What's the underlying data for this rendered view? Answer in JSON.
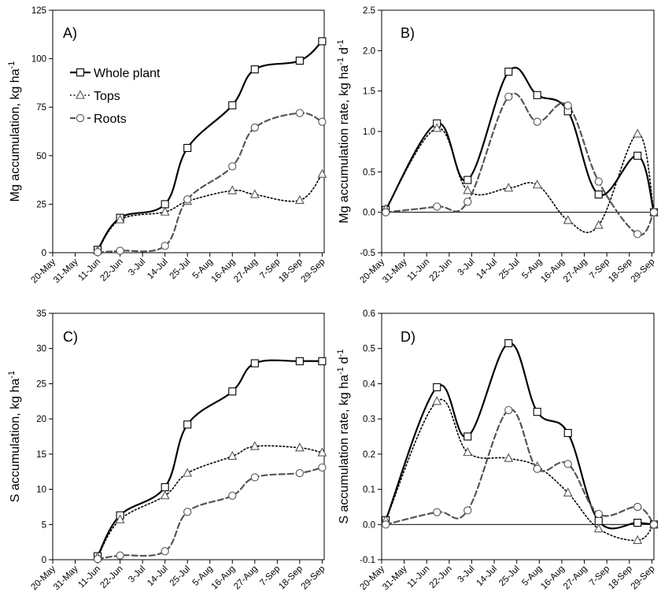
{
  "chart_data": [
    {
      "type": "line",
      "panel": "A)",
      "ylabel": "Mg accumulation, kg ha",
      "ylabel_sup": "-1",
      "ylabel_tail": "",
      "ylim": [
        0,
        125
      ],
      "yticks": [
        0,
        25,
        50,
        75,
        100,
        125
      ],
      "ytick_labels": [
        "0",
        "25",
        "50",
        "75",
        "100",
        "125"
      ],
      "xticks": [
        "20-May",
        "31-May",
        "11-Jun",
        "22-Jun",
        "3-Jul",
        "14-Jul",
        "25-Jul",
        "5-Aug",
        "16-Aug",
        "27-Aug",
        "7-Sep",
        "18-Sep",
        "29-Sep"
      ],
      "zero_line": false,
      "legend": "top-left",
      "series": [
        {
          "name": "Whole plant",
          "marker": "square",
          "style": "solid",
          "x": [
            "11-Jun",
            "22-Jun",
            "14-Jul",
            "25-Jul",
            "16-Aug",
            "27-Aug",
            "18-Sep",
            "29-Sep"
          ],
          "values": [
            1.5,
            18,
            25,
            54,
            76,
            94.5,
            99,
            109
          ]
        },
        {
          "name": "Tops",
          "marker": "triangle",
          "style": "dotted",
          "x": [
            "11-Jun",
            "22-Jun",
            "14-Jul",
            "25-Jul",
            "16-Aug",
            "27-Aug",
            "18-Sep",
            "29-Sep"
          ],
          "values": [
            1,
            17,
            21,
            26.5,
            32,
            30,
            27,
            40.5
          ]
        },
        {
          "name": "Roots",
          "marker": "circle",
          "style": "dashed",
          "x": [
            "11-Jun",
            "22-Jun",
            "14-Jul",
            "25-Jul",
            "16-Aug",
            "27-Aug",
            "18-Sep",
            "29-Sep"
          ],
          "values": [
            0.3,
            1,
            3.5,
            27.5,
            44.5,
            64.5,
            72,
            67.5
          ]
        }
      ]
    },
    {
      "type": "line",
      "panel": "B)",
      "ylabel": "Mg accumulation rate, kg ha",
      "ylabel_sup": "-1",
      "ylabel_tail": "d",
      "ylabel_tail_sup": "-1",
      "ylim": [
        -0.5,
        2.5
      ],
      "yticks": [
        -0.5,
        0,
        0.5,
        1,
        1.5,
        2,
        2.5
      ],
      "ytick_labels": [
        "-0.5",
        "0.0",
        "0.5",
        "1.0",
        "1.5",
        "2.0",
        "2.5"
      ],
      "xticks": [
        "20-May",
        "31-May",
        "11-Jun",
        "22-Jun",
        "3-Jul",
        "14-Jul",
        "25-Jul",
        "5-Aug",
        "16-Aug",
        "27-Aug",
        "7-Sep",
        "18-Sep",
        "29-Sep"
      ],
      "zero_line": true,
      "series": [
        {
          "name": "Whole plant",
          "marker": "square",
          "style": "solid",
          "x": [
            "22-May",
            "16-Jun",
            "1-Jul",
            "21-Jul",
            "4-Aug",
            "19-Aug",
            "3-Sep",
            "22-Sep",
            "30-Sep"
          ],
          "values": [
            0.03,
            1.1,
            0.4,
            1.74,
            1.45,
            1.25,
            0.22,
            0.7,
            0.0
          ]
        },
        {
          "name": "Tops",
          "marker": "triangle",
          "style": "dotted",
          "x": [
            "22-May",
            "16-Jun",
            "1-Jul",
            "21-Jul",
            "4-Aug",
            "19-Aug",
            "3-Sep",
            "22-Sep",
            "30-Sep"
          ],
          "values": [
            0.04,
            1.04,
            0.27,
            0.3,
            0.34,
            -0.1,
            -0.16,
            0.97,
            0.0
          ]
        },
        {
          "name": "Roots",
          "marker": "circle",
          "style": "dashed",
          "x": [
            "22-May",
            "16-Jun",
            "1-Jul",
            "21-Jul",
            "4-Aug",
            "19-Aug",
            "3-Sep",
            "22-Sep",
            "30-Sep"
          ],
          "values": [
            0.0,
            0.07,
            0.13,
            1.43,
            1.12,
            1.32,
            0.38,
            -0.27,
            0.0
          ]
        }
      ]
    },
    {
      "type": "line",
      "panel": "C)",
      "ylabel": "S accumulation, kg ha",
      "ylabel_sup": "-1",
      "ylabel_tail": "",
      "ylim": [
        0,
        35
      ],
      "yticks": [
        0,
        5,
        10,
        15,
        20,
        25,
        30,
        35
      ],
      "ytick_labels": [
        "0",
        "5",
        "10",
        "15",
        "20",
        "25",
        "30",
        "35"
      ],
      "xticks": [
        "20-May",
        "31-May",
        "11-Jun",
        "22-Jun",
        "3-Jul",
        "14-Jul",
        "25-Jul",
        "5-Aug",
        "16-Aug",
        "27-Aug",
        "7-Sep",
        "18-Sep",
        "29-Sep"
      ],
      "zero_line": false,
      "series": [
        {
          "name": "Whole plant",
          "marker": "square",
          "style": "solid",
          "x": [
            "11-Jun",
            "22-Jun",
            "14-Jul",
            "25-Jul",
            "16-Aug",
            "27-Aug",
            "18-Sep",
            "29-Sep"
          ],
          "values": [
            0.5,
            6.3,
            10.3,
            19.2,
            23.9,
            27.9,
            28.2,
            28.2
          ]
        },
        {
          "name": "Tops",
          "marker": "triangle",
          "style": "dotted",
          "x": [
            "11-Jun",
            "22-Jun",
            "14-Jul",
            "25-Jul",
            "16-Aug",
            "27-Aug",
            "18-Sep",
            "29-Sep"
          ],
          "values": [
            0.4,
            5.7,
            9.1,
            12.3,
            14.7,
            16.1,
            15.9,
            15.2
          ]
        },
        {
          "name": "Roots",
          "marker": "circle",
          "style": "dashed",
          "x": [
            "11-Jun",
            "22-Jun",
            "14-Jul",
            "25-Jul",
            "16-Aug",
            "27-Aug",
            "18-Sep",
            "29-Sep"
          ],
          "values": [
            0.1,
            0.6,
            1.2,
            6.8,
            9.1,
            11.7,
            12.3,
            13.1
          ]
        }
      ]
    },
    {
      "type": "line",
      "panel": "D)",
      "ylabel": "S accumulation rate, kg ha",
      "ylabel_sup": "-1",
      "ylabel_tail": "d",
      "ylabel_tail_sup": "-1",
      "ylim": [
        -0.1,
        0.6
      ],
      "yticks": [
        -0.1,
        0,
        0.1,
        0.2,
        0.3,
        0.4,
        0.5,
        0.6
      ],
      "ytick_labels": [
        "-0.1",
        "0.0",
        "0.1",
        "0.2",
        "0.3",
        "0.4",
        "0.5",
        "0.6"
      ],
      "xticks": [
        "20-May",
        "31-May",
        "11-Jun",
        "22-Jun",
        "3-Jul",
        "14-Jul",
        "25-Jul",
        "5-Aug",
        "16-Aug",
        "27-Aug",
        "7-Sep",
        "18-Sep",
        "29-Sep"
      ],
      "zero_line": true,
      "series": [
        {
          "name": "Whole plant",
          "marker": "square",
          "style": "solid",
          "x": [
            "22-May",
            "16-Jun",
            "1-Jul",
            "21-Jul",
            "4-Aug",
            "19-Aug",
            "3-Sep",
            "22-Sep",
            "30-Sep"
          ],
          "values": [
            0.012,
            0.39,
            0.25,
            0.515,
            0.32,
            0.26,
            0.01,
            0.005,
            0.0
          ]
        },
        {
          "name": "Tops",
          "marker": "triangle",
          "style": "dotted",
          "x": [
            "22-May",
            "16-Jun",
            "1-Jul",
            "21-Jul",
            "4-Aug",
            "19-Aug",
            "3-Sep",
            "22-Sep",
            "30-Sep"
          ],
          "values": [
            0.012,
            0.35,
            0.205,
            0.188,
            0.165,
            0.09,
            -0.012,
            -0.045,
            0.0
          ]
        },
        {
          "name": "Roots",
          "marker": "circle",
          "style": "dashed",
          "x": [
            "22-May",
            "16-Jun",
            "1-Jul",
            "21-Jul",
            "4-Aug",
            "19-Aug",
            "3-Sep",
            "22-Sep",
            "30-Sep"
          ],
          "values": [
            0.0,
            0.035,
            0.04,
            0.325,
            0.158,
            0.172,
            0.03,
            0.05,
            0.0
          ]
        }
      ]
    }
  ]
}
